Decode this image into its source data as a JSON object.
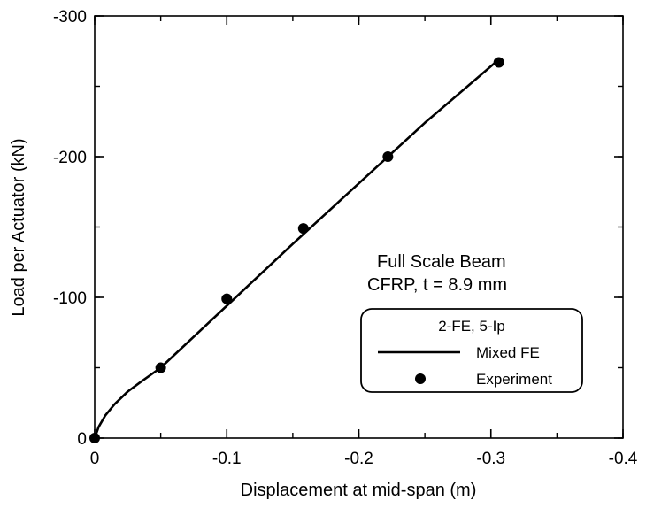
{
  "chart_data": {
    "type": "line",
    "title": "",
    "xlabel": "Displacement at mid-span (m)",
    "ylabel": "Load per Actuator (kN)",
    "xlim": [
      0,
      -0.4
    ],
    "ylim": [
      0,
      -300
    ],
    "x_ticks": [
      {
        "value": 0,
        "label": "0"
      },
      {
        "value": -0.1,
        "label": "-0.1"
      },
      {
        "value": -0.2,
        "label": "-0.2"
      },
      {
        "value": -0.3,
        "label": "-0.3"
      },
      {
        "value": -0.4,
        "label": "-0.4"
      }
    ],
    "y_ticks": [
      {
        "value": 0,
        "label": "0"
      },
      {
        "value": -100,
        "label": "-100"
      },
      {
        "value": -200,
        "label": "-200"
      },
      {
        "value": -300,
        "label": "-300"
      }
    ],
    "x_minor_step": -0.05,
    "y_minor_step": -50,
    "grid": false,
    "annotation": [
      "Full Scale Beam",
      "CFRP, t = 8.9 mm"
    ],
    "legend": {
      "title": "2-FE, 5-Ip",
      "placement": "lower-right",
      "entries": [
        "Mixed FE",
        "Experiment"
      ]
    },
    "series": [
      {
        "name": "Mixed FE",
        "kind": "line",
        "color": "#000000",
        "x": [
          0,
          -0.003,
          -0.008,
          -0.015,
          -0.025,
          -0.035,
          -0.05,
          -0.1,
          -0.15,
          -0.2,
          -0.25,
          -0.306
        ],
        "y": [
          0,
          -8,
          -16,
          -24,
          -33,
          -40,
          -50,
          -94,
          -138,
          -181,
          -224,
          -269
        ]
      },
      {
        "name": "Experiment",
        "kind": "scatter",
        "color": "#000000",
        "x": [
          0,
          -0.05,
          -0.1,
          -0.158,
          -0.222,
          -0.306
        ],
        "y": [
          0,
          -50,
          -99,
          -149,
          -200,
          -267
        ]
      }
    ]
  }
}
